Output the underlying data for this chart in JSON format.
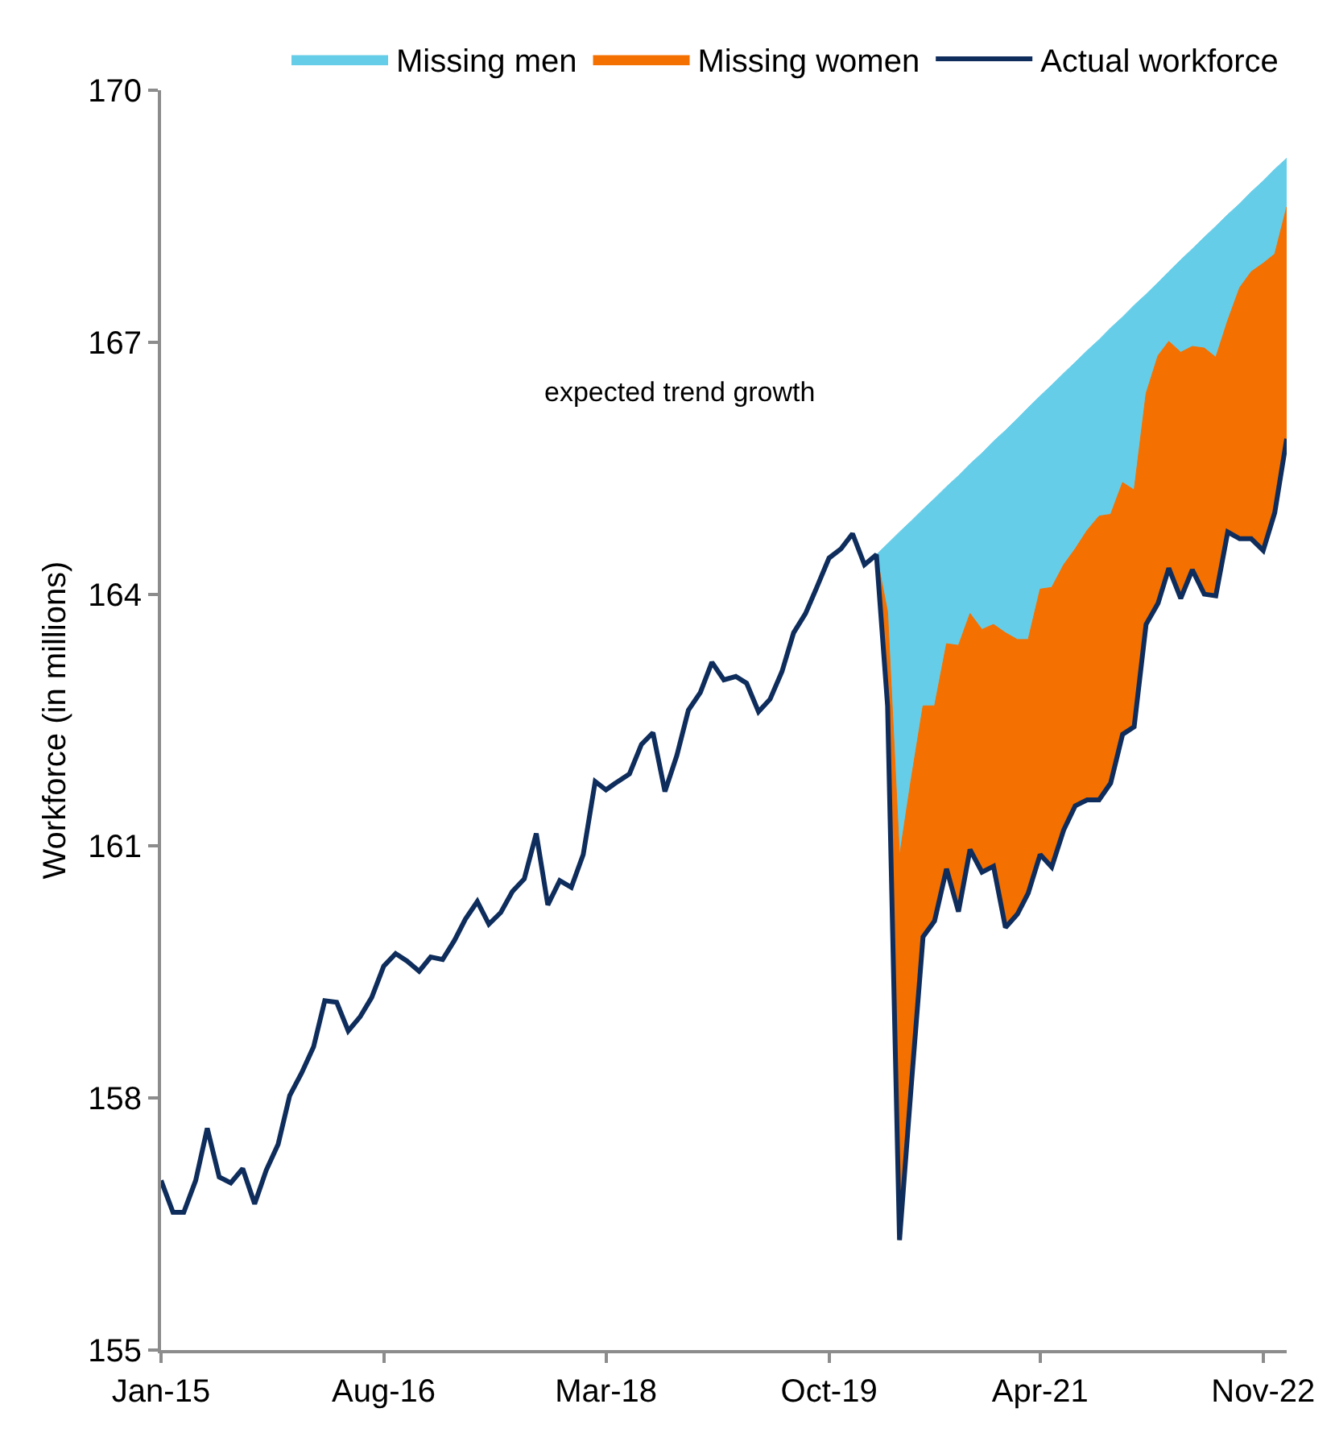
{
  "chart_data": {
    "type": "line",
    "ylabel": "Workforce (in millions)",
    "annotations": [
      "expected trend growth"
    ],
    "xlim": [
      "2015-01",
      "2023-01"
    ],
    "xticks": [
      {
        "value": "2015-01",
        "label": "Jan-15"
      },
      {
        "value": "2016-08",
        "label": "Aug-16"
      },
      {
        "value": "2018-03",
        "label": "Mar-18"
      },
      {
        "value": "2019-10",
        "label": "Oct-19"
      },
      {
        "value": "2021-04",
        "label": "Apr-21"
      },
      {
        "value": "2022-11",
        "label": "Nov-22"
      }
    ],
    "ylim": [
      155,
      170
    ],
    "yticks": [
      155,
      158,
      161,
      164,
      167,
      170
    ],
    "legend": "top",
    "series": [
      {
        "name": "Missing men",
        "type": "area",
        "color": "#66cde8",
        "x": [
          "2020-02",
          "2020-03",
          "2020-04",
          "2020-05",
          "2020-06",
          "2020-07",
          "2020-08",
          "2020-09",
          "2020-10",
          "2020-11",
          "2020-12",
          "2021-01",
          "2021-02",
          "2021-03",
          "2021-04",
          "2021-05",
          "2021-06",
          "2021-07",
          "2021-08",
          "2021-09",
          "2021-10",
          "2021-11",
          "2021-12",
          "2022-01",
          "2022-02",
          "2022-03",
          "2022-04",
          "2022-05",
          "2022-06",
          "2022-07",
          "2022-08",
          "2022-09",
          "2022-10",
          "2022-11",
          "2022-12",
          "2023-01"
        ],
        "values": [
          164.47,
          164.6,
          164.74,
          164.87,
          165.01,
          165.14,
          165.28,
          165.41,
          165.55,
          165.68,
          165.82,
          165.95,
          166.09,
          166.22,
          166.36,
          166.49,
          166.63,
          166.76,
          166.9,
          167.03,
          167.17,
          167.3,
          167.44,
          167.57,
          167.71,
          167.84,
          167.98,
          168.11,
          168.25,
          168.38,
          168.52,
          168.65,
          168.79,
          168.92,
          169.06,
          169.19
        ]
      },
      {
        "name": "Missing women",
        "type": "area",
        "color": "#f47000",
        "x": [
          "2020-02",
          "2020-03",
          "2020-04",
          "2020-05",
          "2020-06",
          "2020-07",
          "2020-08",
          "2020-09",
          "2020-10",
          "2020-11",
          "2020-12",
          "2021-01",
          "2021-02",
          "2021-03",
          "2021-04",
          "2021-05",
          "2021-06",
          "2021-07",
          "2021-08",
          "2021-09",
          "2021-10",
          "2021-11",
          "2021-12",
          "2022-01",
          "2022-02",
          "2022-03",
          "2022-04",
          "2022-05",
          "2022-06",
          "2022-07",
          "2022-08",
          "2022-09",
          "2022-10",
          "2022-11",
          "2022-12",
          "2023-01"
        ],
        "values": [
          164.47,
          163.79,
          160.88,
          161.79,
          162.67,
          162.67,
          163.41,
          163.39,
          163.77,
          163.58,
          163.64,
          163.54,
          163.46,
          163.46,
          164.06,
          164.08,
          164.35,
          164.54,
          164.76,
          164.93,
          164.95,
          165.33,
          165.24,
          166.39,
          166.84,
          167.01,
          166.88,
          166.95,
          166.93,
          166.82,
          167.26,
          167.65,
          167.84,
          167.94,
          168.05,
          168.61
        ]
      },
      {
        "name": "Actual workforce",
        "color": "#0e2d5c",
        "x": [
          "2015-01",
          "2015-02",
          "2015-03",
          "2015-04",
          "2015-05",
          "2015-06",
          "2015-07",
          "2015-08",
          "2015-09",
          "2015-10",
          "2015-11",
          "2015-12",
          "2016-01",
          "2016-02",
          "2016-03",
          "2016-04",
          "2016-05",
          "2016-06",
          "2016-07",
          "2016-08",
          "2016-09",
          "2016-10",
          "2016-11",
          "2016-12",
          "2017-01",
          "2017-02",
          "2017-03",
          "2017-04",
          "2017-05",
          "2017-06",
          "2017-07",
          "2017-08",
          "2017-09",
          "2017-10",
          "2017-11",
          "2017-12",
          "2018-01",
          "2018-02",
          "2018-03",
          "2018-04",
          "2018-05",
          "2018-06",
          "2018-07",
          "2018-08",
          "2018-09",
          "2018-10",
          "2018-11",
          "2018-12",
          "2019-01",
          "2019-02",
          "2019-03",
          "2019-04",
          "2019-05",
          "2019-06",
          "2019-07",
          "2019-08",
          "2019-09",
          "2019-10",
          "2019-11",
          "2019-12",
          "2020-01",
          "2020-02",
          "2020-03",
          "2020-04",
          "2020-05",
          "2020-06",
          "2020-07",
          "2020-08",
          "2020-09",
          "2020-10",
          "2020-11",
          "2020-12",
          "2021-01",
          "2021-02",
          "2021-03",
          "2021-04",
          "2021-05",
          "2021-06",
          "2021-07",
          "2021-08",
          "2021-09",
          "2021-10",
          "2021-11",
          "2021-12",
          "2022-01",
          "2022-02",
          "2022-03",
          "2022-04",
          "2022-05",
          "2022-06",
          "2022-07",
          "2022-08",
          "2022-09",
          "2022-10",
          "2022-11",
          "2022-12",
          "2023-01"
        ],
        "values": [
          157.02,
          156.64,
          156.64,
          157.02,
          157.64,
          157.06,
          156.99,
          157.16,
          156.74,
          157.14,
          157.45,
          158.03,
          158.3,
          158.61,
          159.16,
          159.14,
          158.8,
          158.97,
          159.2,
          159.57,
          159.72,
          159.63,
          159.51,
          159.68,
          159.65,
          159.88,
          160.13,
          160.34,
          160.07,
          160.21,
          160.46,
          160.61,
          161.15,
          160.3,
          160.59,
          160.51,
          160.9,
          161.77,
          161.67,
          161.77,
          161.86,
          162.21,
          162.35,
          161.65,
          162.08,
          162.62,
          162.83,
          163.19,
          162.98,
          163.02,
          162.94,
          162.6,
          162.75,
          163.08,
          163.54,
          163.77,
          164.1,
          164.43,
          164.54,
          164.72,
          164.35,
          164.47,
          162.67,
          156.31,
          158.12,
          159.92,
          160.11,
          160.73,
          160.22,
          160.96,
          160.69,
          160.76,
          160.03,
          160.19,
          160.44,
          160.9,
          160.75,
          161.19,
          161.48,
          161.55,
          161.55,
          161.75,
          162.33,
          162.42,
          163.64,
          163.89,
          164.31,
          163.95,
          164.29,
          164.0,
          163.98,
          164.74,
          164.66,
          164.66,
          164.52,
          164.97,
          165.85
        ]
      }
    ]
  }
}
